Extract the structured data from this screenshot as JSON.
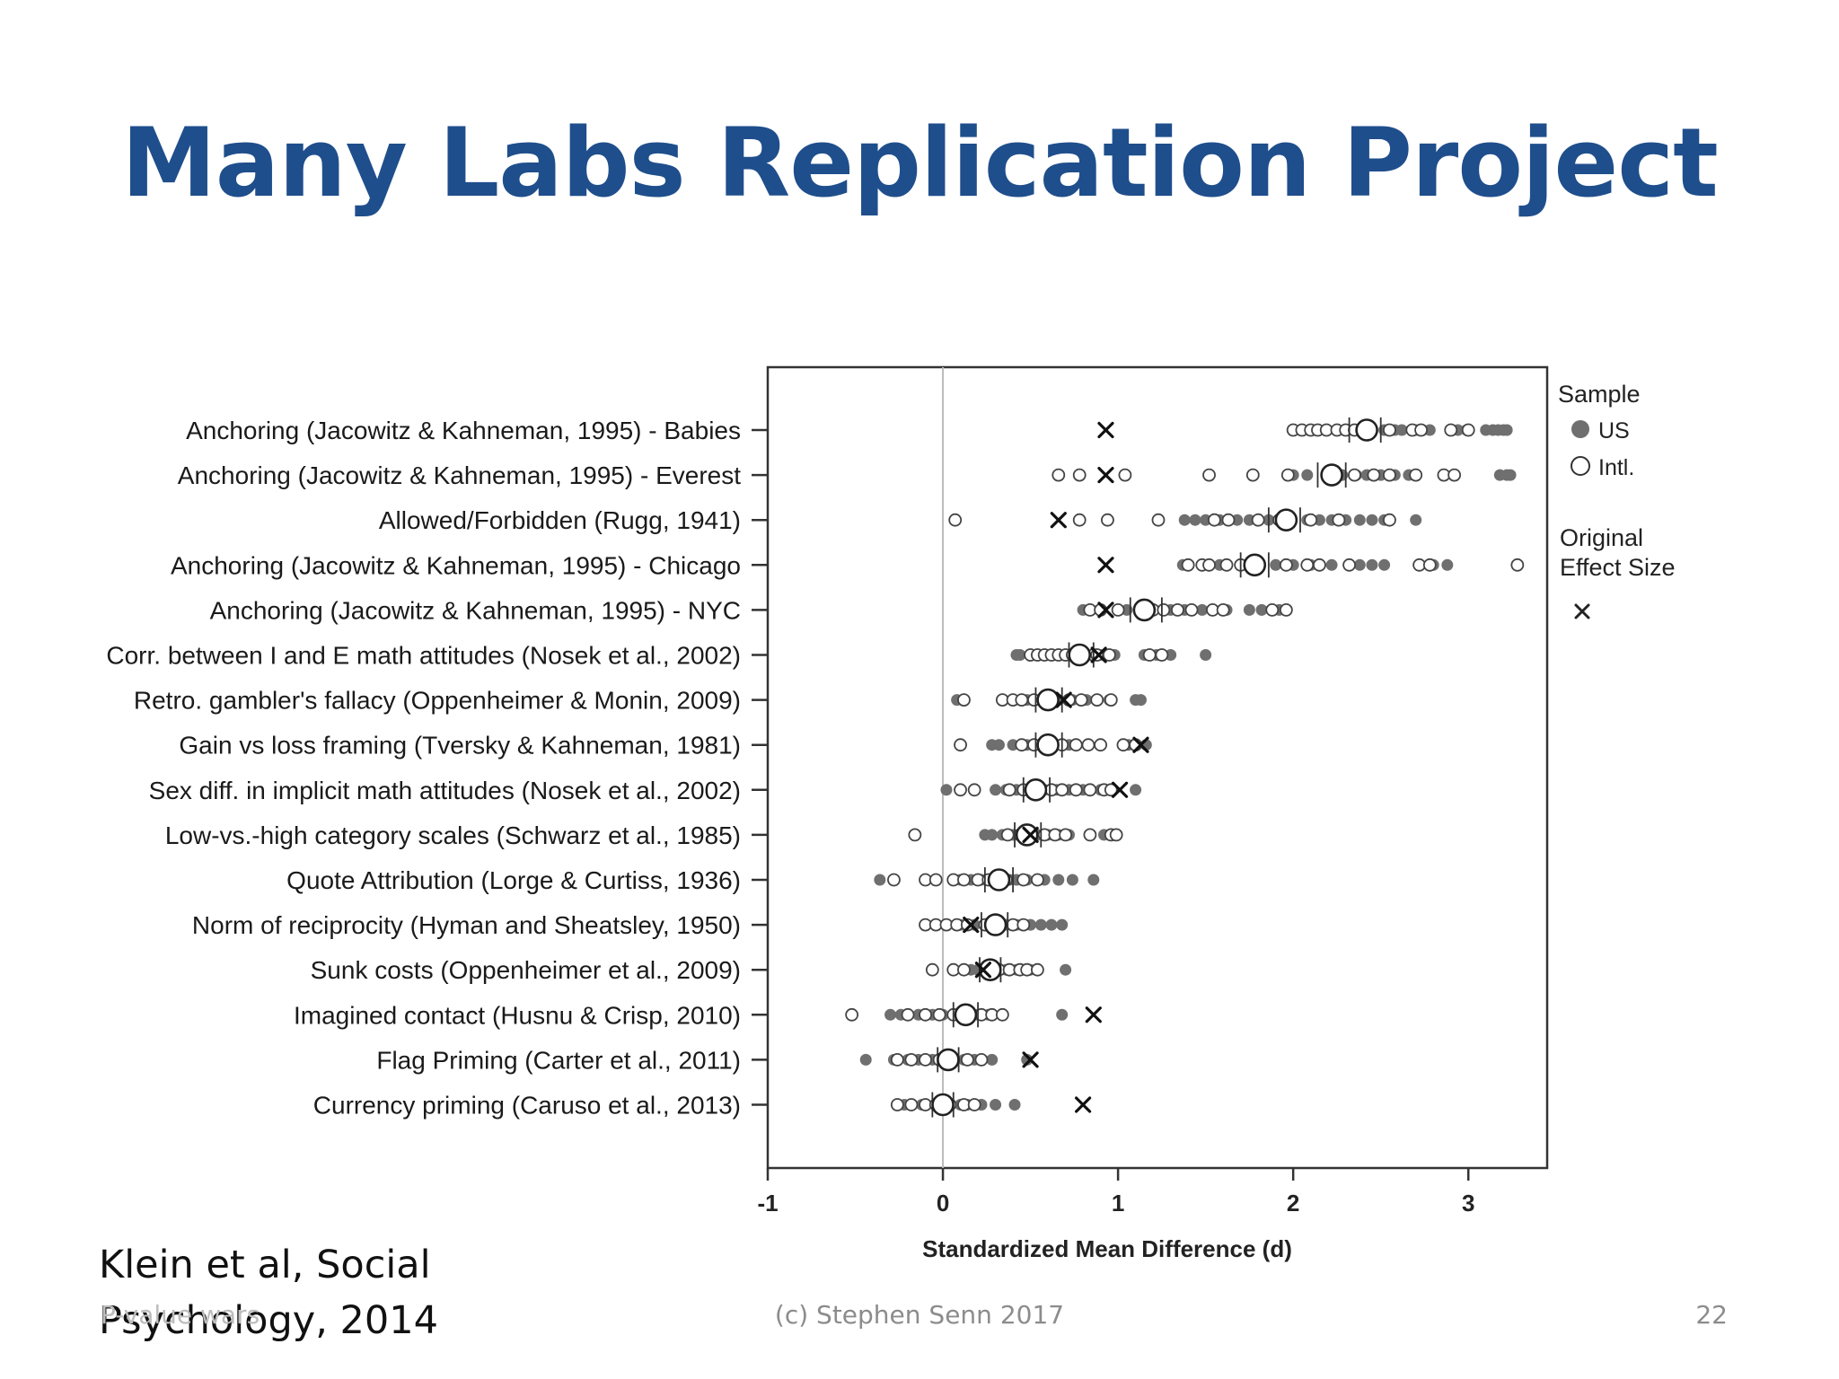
{
  "slide": {
    "title": "Many Labs Replication Project",
    "citation_line1": "Klein et al, Social",
    "citation_line2": "Psychology, 2014",
    "footer_left": "P-value wars",
    "footer_center": "(c) Stephen Senn 2017",
    "page_number": "22"
  },
  "colors": {
    "title": "#1f4e8c",
    "us_dot": "#6f6f6f",
    "axis": "#333333",
    "zero_line": "#bbbbbb"
  },
  "chart_data": {
    "type": "scatter",
    "xlabel": "Standardized Mean Difference (d)",
    "xlim": [
      -1,
      3.45
    ],
    "xticks": [
      -1,
      0,
      1,
      2,
      3
    ],
    "legend": {
      "title": "Sample",
      "us_label": "US",
      "intl_label": "Intl.",
      "original_title_line1": "Original",
      "original_title_line2": "Effect Size",
      "placement": "right"
    },
    "studies": [
      {
        "label": "Anchoring (Jacowitz & Kahneman, 1995) - Babies",
        "original": 0.93,
        "mean": 2.42,
        "ci": [
          2.32,
          2.5
        ],
        "us": [
          2.52,
          2.58,
          2.62,
          2.7,
          2.74,
          2.78,
          2.94,
          2.99,
          3.1,
          3.14,
          3.17,
          3.2,
          3.22
        ],
        "intl": [
          2.0,
          2.05,
          2.1,
          2.14,
          2.19,
          2.25,
          2.3,
          2.35,
          2.55,
          2.68,
          2.73,
          2.9,
          3.0
        ]
      },
      {
        "label": "Anchoring (Jacowitz & Kahneman, 1995) - Everest",
        "original": 0.93,
        "mean": 2.22,
        "ci": [
          2.14,
          2.3
        ],
        "us": [
          2.0,
          2.08,
          2.28,
          2.36,
          2.42,
          2.5,
          2.58,
          2.66,
          3.18,
          3.22,
          3.24
        ],
        "intl": [
          0.66,
          0.78,
          1.04,
          1.52,
          1.77,
          1.97,
          2.35,
          2.46,
          2.55,
          2.7,
          2.86,
          2.92
        ]
      },
      {
        "label": "Allowed/Forbidden (Rugg, 1941)",
        "original": 0.66,
        "mean": 1.96,
        "ci": [
          1.86,
          2.04
        ],
        "us": [
          1.38,
          1.44,
          1.5,
          1.58,
          1.68,
          1.75,
          1.86,
          2.08,
          2.15,
          2.22,
          2.3,
          2.38,
          2.45,
          2.52,
          2.7
        ],
        "intl": [
          0.07,
          0.78,
          0.94,
          1.23,
          1.55,
          1.63,
          1.8,
          1.92,
          2.1,
          2.26,
          2.55
        ]
      },
      {
        "label": "Anchoring (Jacowitz & Kahneman, 1995) - Chicago",
        "original": 0.93,
        "mean": 1.78,
        "ci": [
          1.7,
          1.86
        ],
        "us": [
          1.37,
          1.58,
          1.9,
          2.0,
          2.1,
          2.22,
          2.38,
          2.45,
          2.52,
          2.8,
          2.88
        ],
        "intl": [
          1.4,
          1.48,
          1.52,
          1.62,
          1.7,
          1.96,
          2.08,
          2.15,
          2.32,
          2.72,
          2.78,
          3.28
        ]
      },
      {
        "label": "Anchoring (Jacowitz & Kahneman, 1995) - NYC",
        "original": 0.93,
        "mean": 1.15,
        "ci": [
          1.07,
          1.25
        ],
        "us": [
          0.8,
          1.05,
          1.12,
          1.3,
          1.38,
          1.48,
          1.62,
          1.75,
          1.82,
          1.92
        ],
        "intl": [
          0.84,
          0.9,
          1.0,
          1.2,
          1.26,
          1.34,
          1.42,
          1.54,
          1.6,
          1.88,
          1.96
        ]
      },
      {
        "label": "Corr. between I and E math attitudes (Nosek et al., 2002)",
        "original": 0.89,
        "mean": 0.78,
        "ci": [
          0.72,
          0.86
        ],
        "us": [
          0.42,
          0.44,
          0.9,
          0.93,
          0.98,
          1.15,
          1.22,
          1.3,
          1.5
        ],
        "intl": [
          0.5,
          0.54,
          0.58,
          0.62,
          0.66,
          0.7,
          0.74,
          0.86,
          0.88,
          0.95,
          1.18,
          1.25
        ]
      },
      {
        "label": "Retro. gambler's fallacy (Oppenheimer & Monin, 2009)",
        "original": 0.69,
        "mean": 0.6,
        "ci": [
          0.53,
          0.68
        ],
        "us": [
          0.08,
          0.48,
          0.55,
          0.66,
          0.74,
          0.82,
          0.95,
          1.1,
          1.13
        ],
        "intl": [
          0.12,
          0.34,
          0.4,
          0.45,
          0.52,
          0.58,
          0.72,
          0.79,
          0.88,
          0.96
        ]
      },
      {
        "label": "Gain vs loss framing (Tversky & Kahneman, 1981)",
        "original": 1.13,
        "mean": 0.6,
        "ci": [
          0.53,
          0.68
        ],
        "us": [
          0.28,
          0.32,
          0.4,
          0.48,
          0.56,
          0.64,
          0.72,
          1.06,
          1.16
        ],
        "intl": [
          0.1,
          0.45,
          0.52,
          0.62,
          0.68,
          0.76,
          0.83,
          0.9,
          1.03,
          1.1
        ]
      },
      {
        "label": "Sex diff. in implicit math attitudes (Nosek et al., 2002)",
        "original": 1.01,
        "mean": 0.53,
        "ci": [
          0.46,
          0.61
        ],
        "us": [
          0.02,
          0.3,
          0.36,
          0.42,
          0.58,
          0.65,
          0.72,
          0.8,
          0.9,
          1.1
        ],
        "intl": [
          0.1,
          0.18,
          0.38,
          0.46,
          0.62,
          0.68,
          0.76,
          0.84,
          0.92,
          0.96
        ]
      },
      {
        "label": "Low-vs.-high category scales (Schwarz et al., 1985)",
        "original": 0.5,
        "mean": 0.48,
        "ci": [
          0.41,
          0.56
        ],
        "us": [
          0.24,
          0.28,
          0.34,
          0.4,
          0.54,
          0.6,
          0.66,
          0.72,
          0.92
        ],
        "intl": [
          -0.16,
          0.37,
          0.44,
          0.5,
          0.58,
          0.64,
          0.7,
          0.84,
          0.96,
          0.99
        ]
      },
      {
        "label": "Quote Attribution (Lorge & Curtiss, 1936)",
        "original": null,
        "mean": 0.32,
        "ci": [
          0.24,
          0.4
        ],
        "us": [
          -0.36,
          0.1,
          0.16,
          0.22,
          0.38,
          0.42,
          0.48,
          0.58,
          0.66,
          0.74,
          0.86
        ],
        "intl": [
          -0.28,
          -0.1,
          -0.04,
          0.06,
          0.12,
          0.2,
          0.26,
          0.36,
          0.46,
          0.54
        ]
      },
      {
        "label": "Norm of reciprocity (Hyman and Sheatsley, 1950)",
        "original": 0.16,
        "mean": 0.3,
        "ci": [
          0.22,
          0.37
        ],
        "us": [
          0.1,
          0.18,
          0.36,
          0.42,
          0.5,
          0.56,
          0.62,
          0.68
        ],
        "intl": [
          -0.1,
          -0.04,
          0.02,
          0.08,
          0.14,
          0.24,
          0.32,
          0.4,
          0.46
        ]
      },
      {
        "label": "Sunk costs (Oppenheimer et al., 2009)",
        "original": 0.23,
        "mean": 0.27,
        "ci": [
          0.21,
          0.33
        ],
        "us": [
          0.16,
          0.2,
          0.3,
          0.36,
          0.42,
          0.5,
          0.7
        ],
        "intl": [
          -0.06,
          0.06,
          0.12,
          0.26,
          0.32,
          0.38,
          0.44,
          0.48,
          0.54
        ]
      },
      {
        "label": "Imagined contact (Husnu & Crisp, 2010)",
        "original": 0.86,
        "mean": 0.13,
        "ci": [
          0.06,
          0.2
        ],
        "us": [
          -0.3,
          -0.24,
          -0.14,
          -0.06,
          0.0,
          0.2,
          0.26,
          0.68
        ],
        "intl": [
          -0.52,
          -0.2,
          -0.1,
          -0.02,
          0.06,
          0.16,
          0.22,
          0.28,
          0.34
        ]
      },
      {
        "label": "Flag Priming (Carter et al., 2011)",
        "original": 0.5,
        "mean": 0.03,
        "ci": [
          -0.03,
          0.09
        ],
        "us": [
          -0.44,
          -0.28,
          -0.2,
          -0.14,
          -0.06,
          0.12,
          0.18,
          0.28,
          0.48
        ],
        "intl": [
          -0.26,
          -0.18,
          -0.1,
          -0.02,
          0.06,
          0.14,
          0.22
        ]
      },
      {
        "label": "Currency priming (Caruso et al., 2013)",
        "original": 0.8,
        "mean": 0.0,
        "ci": [
          -0.06,
          0.06
        ],
        "us": [
          -0.22,
          -0.12,
          0.1,
          0.14,
          0.22,
          0.3,
          0.41
        ],
        "intl": [
          -0.26,
          -0.18,
          -0.1,
          -0.04,
          0.04,
          0.12,
          0.18
        ]
      }
    ]
  }
}
